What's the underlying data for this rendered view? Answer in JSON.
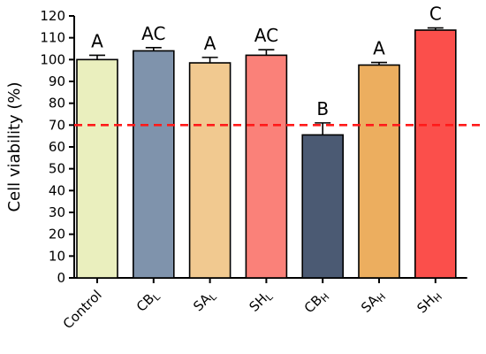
{
  "chart_data": {
    "type": "bar",
    "ylabel": "Cell viability (%)",
    "ylim": [
      0,
      120
    ],
    "ytick_step": 10,
    "grid": false,
    "categories": [
      {
        "main": "Control",
        "sub": ""
      },
      {
        "main": "CB",
        "sub": "L"
      },
      {
        "main": "SA",
        "sub": "L"
      },
      {
        "main": "SH",
        "sub": "L"
      },
      {
        "main": "CB",
        "sub": "H"
      },
      {
        "main": "SA",
        "sub": "H"
      },
      {
        "main": "SH",
        "sub": "H"
      }
    ],
    "values": [
      100,
      104,
      98.5,
      102,
      65.5,
      97.5,
      113.5
    ],
    "errors": [
      2,
      1.5,
      2.5,
      2.5,
      5.5,
      1.2,
      1
    ],
    "significance": [
      "A",
      "AC",
      "A",
      "AC",
      "B",
      "A",
      "C"
    ],
    "bar_colors": [
      "#eaefbe",
      "#7f93ac",
      "#f1c990",
      "#fa8179",
      "#4b5a73",
      "#ecae5f",
      "#fb4f4b"
    ],
    "threshold": {
      "value": 70,
      "color": "#ff1a1a",
      "style": "dashed"
    }
  }
}
